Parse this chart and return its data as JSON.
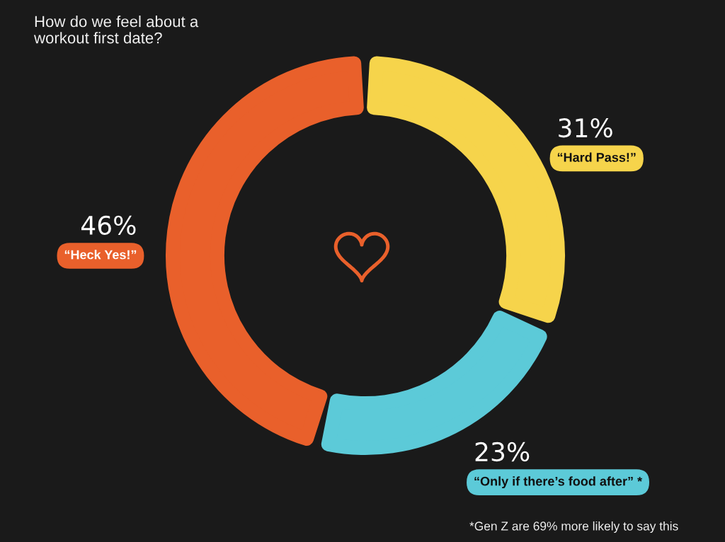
{
  "chart_data": {
    "type": "donut",
    "title": "How do we feel about a\nworkout first date?",
    "categories": [
      "“Hard Pass!”",
      "“Only if there’s food after” *",
      "“Heck Yes!”"
    ],
    "values": [
      31,
      23,
      46
    ],
    "colors": [
      "#f6d44b",
      "#5ccad8",
      "#e9602b"
    ],
    "value_labels": [
      "31%",
      "23%",
      "46%"
    ],
    "annotations": [
      "*Gen Z are 69% more likely to say this"
    ]
  }
}
